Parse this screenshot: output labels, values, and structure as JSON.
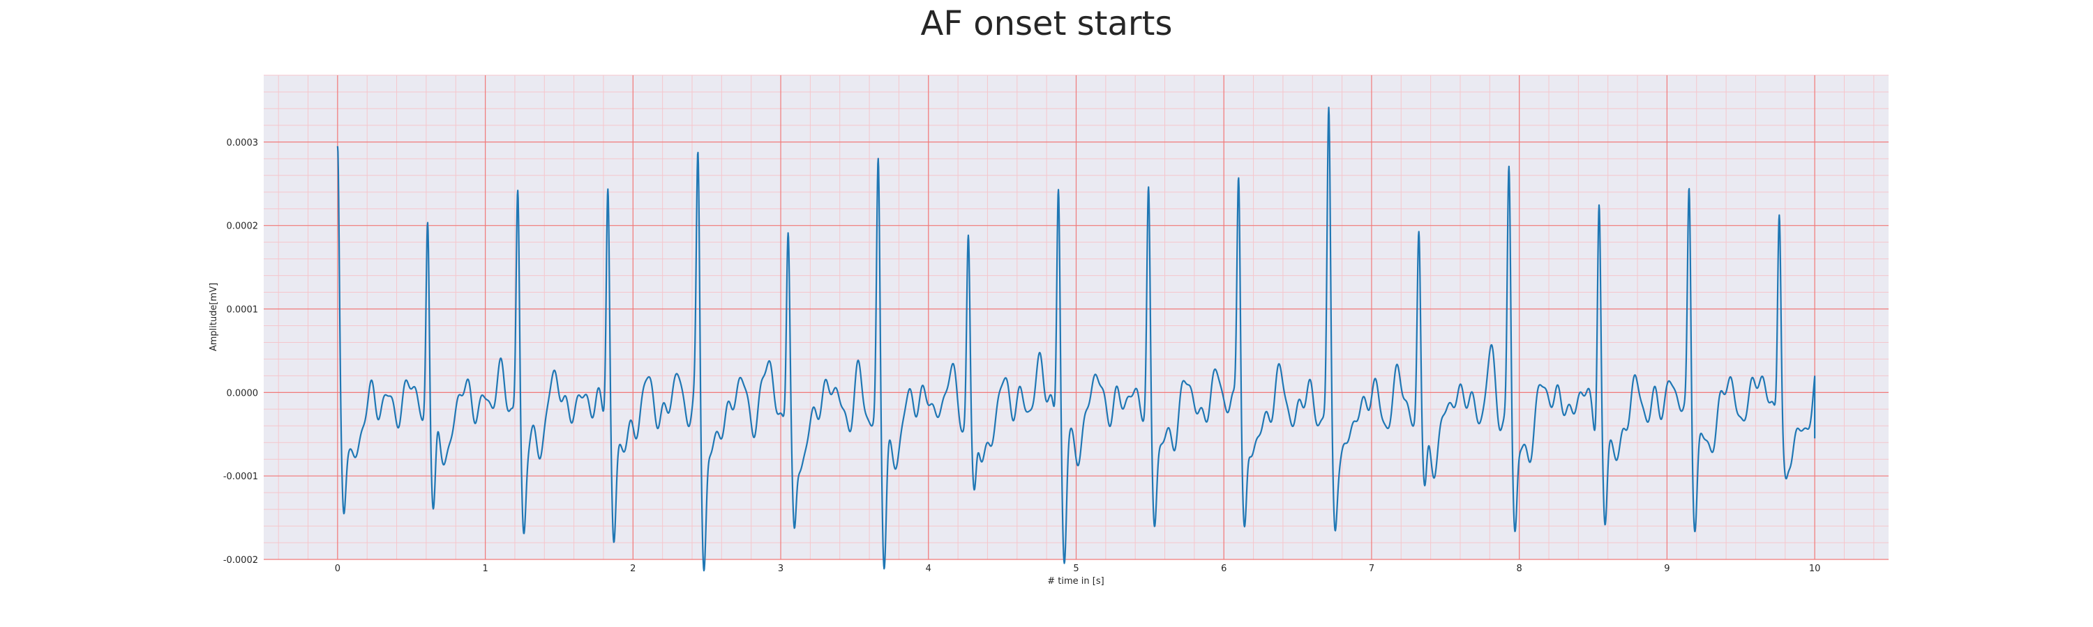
{
  "chart_data": {
    "type": "line",
    "title": "AF onset starts",
    "xlabel": "# time in [s]",
    "ylabel": "Amplitude[mV]",
    "xlim": [
      -0.5,
      10.5
    ],
    "ylim": [
      -0.0002,
      0.00038
    ],
    "xticks": [
      0,
      1,
      2,
      3,
      4,
      5,
      6,
      7,
      8,
      9,
      10
    ],
    "xtick_labels": [
      "0",
      "1",
      "2",
      "3",
      "4",
      "5",
      "6",
      "7",
      "8",
      "9",
      "10"
    ],
    "yticks": [
      -0.0002,
      -0.0001,
      0.0,
      0.0001,
      0.0002,
      0.0003
    ],
    "ytick_labels": [
      "-0.0002",
      "-0.0001",
      "0.0000",
      "0.0001",
      "0.0002",
      "0.0003"
    ],
    "grid": {
      "major": true,
      "minor": true,
      "major_color": "#f07a7a",
      "minor_color": "#f5c6cc"
    },
    "legend": "none",
    "colors": {
      "background": "#eaeaf2",
      "line": "#1f77b4"
    },
    "beats": [
      {
        "t": 0.0,
        "peak": 0.00032,
        "trough": -0.000112
      },
      {
        "t": 0.61,
        "peak": 0.00026,
        "trough": -0.000112
      },
      {
        "t": 1.22,
        "peak": 0.00029,
        "trough": -0.000125
      },
      {
        "t": 1.83,
        "peak": 0.000288,
        "trough": -0.000132
      },
      {
        "t": 2.44,
        "peak": 0.000308,
        "trough": -0.00016
      },
      {
        "t": 3.05,
        "peak": 0.000227,
        "trough": -0.00014
      },
      {
        "t": 3.66,
        "peak": 0.000305,
        "trough": -0.000173
      },
      {
        "t": 4.27,
        "peak": 0.000235,
        "trough": -0.0001
      },
      {
        "t": 4.88,
        "peak": 0.000305,
        "trough": -0.000168
      },
      {
        "t": 5.49,
        "peak": 0.000275,
        "trough": -0.000103
      },
      {
        "t": 6.1,
        "peak": 0.000305,
        "trough": -0.000122
      },
      {
        "t": 6.71,
        "peak": 0.000355,
        "trough": -0.000115
      },
      {
        "t": 7.32,
        "peak": 0.000225,
        "trough": -8.5e-05
      },
      {
        "t": 7.93,
        "peak": 0.000311,
        "trough": -0.000142
      },
      {
        "t": 8.54,
        "peak": 0.00028,
        "trough": -0.000132
      },
      {
        "t": 9.15,
        "peak": 0.000285,
        "trough": -0.000108
      },
      {
        "t": 9.76,
        "peak": 0.000257,
        "trough": -6e-05
      }
    ],
    "end_point": {
      "t": 10.0,
      "value": -5.5e-05
    }
  }
}
